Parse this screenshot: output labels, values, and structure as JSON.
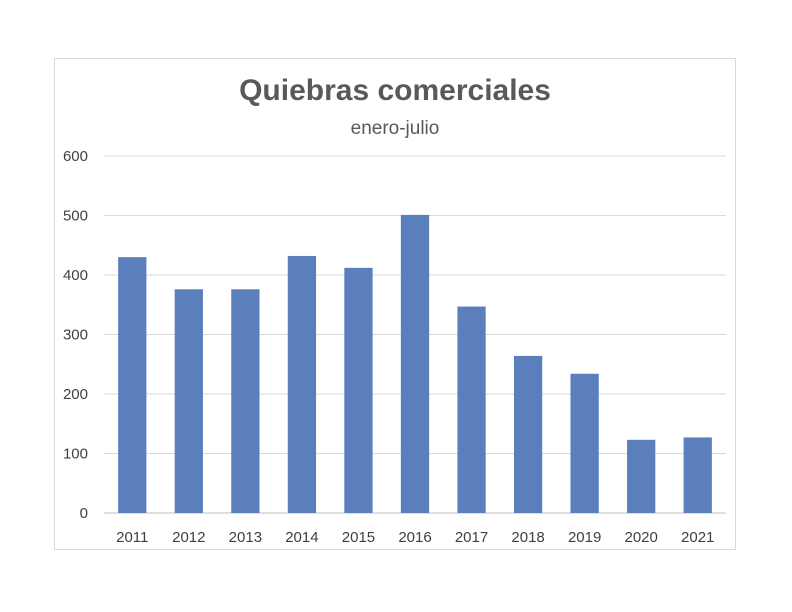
{
  "chart_data": {
    "type": "bar",
    "title": "Quiebras comerciales",
    "subtitle": "enero-julio",
    "categories": [
      "2011",
      "2012",
      "2013",
      "2014",
      "2015",
      "2016",
      "2017",
      "2018",
      "2019",
      "2020",
      "2021"
    ],
    "values": [
      430,
      376,
      376,
      432,
      412,
      501,
      347,
      264,
      234,
      123,
      127
    ],
    "ylim": [
      0,
      600
    ],
    "yticks": [
      0,
      100,
      200,
      300,
      400,
      500,
      600
    ],
    "grid": true,
    "legend": "none",
    "bar_color": "#5b7ebd"
  }
}
